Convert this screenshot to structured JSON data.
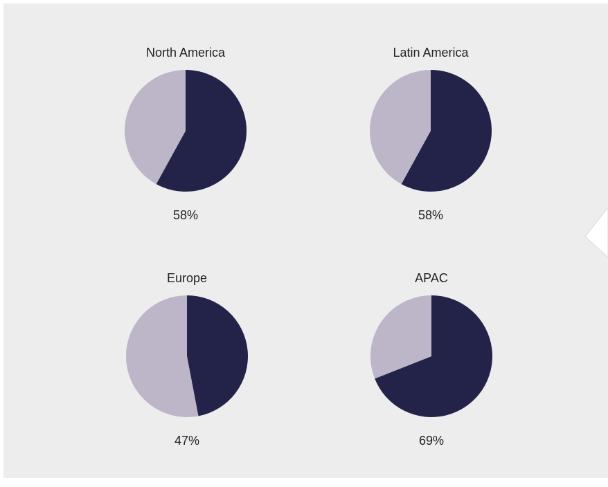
{
  "chart_data": [
    {
      "type": "pie",
      "title": "North America",
      "values": [
        58,
        42
      ],
      "value_labels": [
        "58%",
        null
      ],
      "colors": [
        "#23234a",
        "#bdb6c9"
      ]
    },
    {
      "type": "pie",
      "title": "Latin America",
      "values": [
        58,
        42
      ],
      "value_labels": [
        "58%",
        null
      ],
      "colors": [
        "#23234a",
        "#bdb6c9"
      ]
    },
    {
      "type": "pie",
      "title": "Europe",
      "values": [
        47,
        53
      ],
      "value_labels": [
        "47%",
        null
      ],
      "colors": [
        "#23234a",
        "#bdb6c9"
      ]
    },
    {
      "type": "pie",
      "title": "APAC",
      "values": [
        69,
        31
      ],
      "value_labels": [
        "69%",
        null
      ],
      "colors": [
        "#23234a",
        "#bdb6c9"
      ]
    }
  ]
}
